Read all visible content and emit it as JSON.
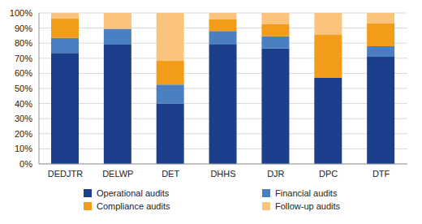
{
  "chart_data": {
    "type": "bar",
    "stacked": true,
    "grid": true,
    "legend": "bottom",
    "categories": [
      "DEDJTR",
      "DELWP",
      "DET",
      "DHHS",
      "DJR",
      "DPC",
      "DTF"
    ],
    "series": [
      {
        "name": "Operational audits",
        "color": "#1c3f8c",
        "values": [
          73.5,
          79,
          40,
          79.5,
          76.5,
          57,
          71
        ]
      },
      {
        "name": "Financial audits",
        "color": "#4a80c2",
        "values": [
          10,
          10.5,
          12.5,
          8.5,
          8,
          0,
          7
        ]
      },
      {
        "name": "Compliance audits",
        "color": "#f39c1a",
        "values": [
          13,
          0,
          16,
          8,
          8,
          28.5,
          15
        ]
      },
      {
        "name": "Follow-up audits",
        "color": "#fbc47c",
        "values": [
          3.5,
          10.5,
          31.5,
          4,
          7.5,
          14.5,
          7
        ]
      }
    ],
    "ylim": [
      0,
      100
    ],
    "yticks": [
      {
        "value": 0,
        "label": "0%"
      },
      {
        "value": 10,
        "label": "10%"
      },
      {
        "value": 20,
        "label": "20%"
      },
      {
        "value": 30,
        "label": "30%"
      },
      {
        "value": 40,
        "label": "40%"
      },
      {
        "value": 50,
        "label": "50%"
      },
      {
        "value": 60,
        "label": "60%"
      },
      {
        "value": 70,
        "label": "70%"
      },
      {
        "value": 80,
        "label": "80%"
      },
      {
        "value": 90,
        "label": "90%"
      },
      {
        "value": 100,
        "label": "100%"
      }
    ]
  }
}
